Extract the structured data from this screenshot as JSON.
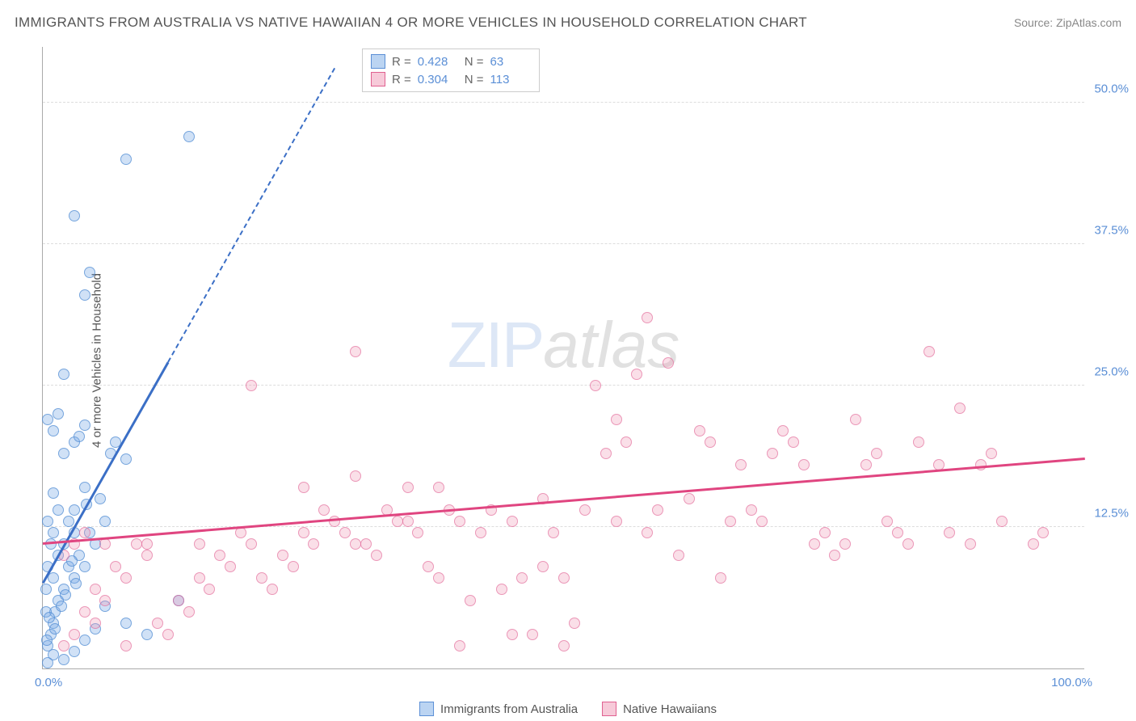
{
  "title": "IMMIGRANTS FROM AUSTRALIA VS NATIVE HAWAIIAN 4 OR MORE VEHICLES IN HOUSEHOLD CORRELATION CHART",
  "source": "Source: ZipAtlas.com",
  "y_axis_label": "4 or more Vehicles in Household",
  "watermark_a": "ZIP",
  "watermark_b": "atlas",
  "chart": {
    "type": "scatter",
    "xlim": [
      0,
      100
    ],
    "ylim": [
      0,
      55
    ],
    "background_color": "#ffffff",
    "grid_color": "#dddddd",
    "axis_color": "#aaaaaa",
    "y_ticks": [
      {
        "val": 12.5,
        "label": "12.5%"
      },
      {
        "val": 25.0,
        "label": "25.0%"
      },
      {
        "val": 37.5,
        "label": "37.5%"
      },
      {
        "val": 50.0,
        "label": "50.0%"
      }
    ],
    "x_ticks": [
      {
        "val": 0,
        "label": "0.0%",
        "align": "left"
      },
      {
        "val": 100,
        "label": "100.0%",
        "align": "right"
      }
    ],
    "series": [
      {
        "name": "Immigrants from Australia",
        "color_fill": "rgba(120,170,230,0.35)",
        "color_stroke": "#5b8fd6",
        "label_color": "#5b8fd6",
        "R": "0.428",
        "N": "63",
        "trend": {
          "x1": 0,
          "y1": 7.5,
          "x2": 12,
          "y2": 27,
          "extend_x2": 28,
          "extend_y2": 53,
          "color": "#3b6fc6"
        },
        "points": [
          [
            0.5,
            2
          ],
          [
            0.8,
            3
          ],
          [
            1,
            4
          ],
          [
            1.2,
            5
          ],
          [
            1.5,
            6
          ],
          [
            0.3,
            7
          ],
          [
            2,
            7
          ],
          [
            1,
            8
          ],
          [
            3,
            8
          ],
          [
            0.5,
            9
          ],
          [
            2.5,
            9
          ],
          [
            4,
            9
          ],
          [
            1.5,
            10
          ],
          [
            3.5,
            10
          ],
          [
            0.8,
            11
          ],
          [
            2,
            11
          ],
          [
            5,
            11
          ],
          [
            1,
            12
          ],
          [
            3,
            12
          ],
          [
            4.5,
            12
          ],
          [
            0.5,
            13
          ],
          [
            2.5,
            13
          ],
          [
            6,
            13
          ],
          [
            1.5,
            14
          ],
          [
            3,
            14
          ],
          [
            0.3,
            5
          ],
          [
            1.8,
            5.5
          ],
          [
            2.2,
            6.5
          ],
          [
            0.6,
            4.5
          ],
          [
            3.2,
            7.5
          ],
          [
            4.2,
            14.5
          ],
          [
            5.5,
            15
          ],
          [
            1,
            15.5
          ],
          [
            2.8,
            9.5
          ],
          [
            1.2,
            3.5
          ],
          [
            0.4,
            2.5
          ],
          [
            6.5,
            19
          ],
          [
            7,
            20
          ],
          [
            8,
            18.5
          ],
          [
            2,
            19
          ],
          [
            3,
            20
          ],
          [
            1,
            21
          ],
          [
            0.5,
            22
          ],
          [
            1.5,
            22.5
          ],
          [
            2,
            26
          ],
          [
            3.5,
            20.5
          ],
          [
            4,
            21.5
          ],
          [
            13,
            6
          ],
          [
            10,
            3
          ],
          [
            8,
            4
          ],
          [
            6,
            5.5
          ],
          [
            5,
            3.5
          ],
          [
            4,
            2.5
          ],
          [
            3,
            1.5
          ],
          [
            2,
            0.8
          ],
          [
            1,
            1.2
          ],
          [
            0.5,
            0.5
          ],
          [
            3,
            40
          ],
          [
            4,
            33
          ],
          [
            4.5,
            35
          ],
          [
            8,
            45
          ],
          [
            14,
            47
          ],
          [
            4,
            16
          ]
        ]
      },
      {
        "name": "Native Hawaiians",
        "color_fill": "rgba(240,150,180,0.3)",
        "color_stroke": "#e06090",
        "label_color": "#e06090",
        "R": "0.304",
        "N": "113",
        "trend": {
          "x1": 0,
          "y1": 11,
          "x2": 100,
          "y2": 18.5,
          "color": "#e04580"
        },
        "points": [
          [
            2,
            2
          ],
          [
            3,
            3
          ],
          [
            5,
            4
          ],
          [
            4,
            5
          ],
          [
            6,
            6
          ],
          [
            5,
            7
          ],
          [
            8,
            8
          ],
          [
            7,
            9
          ],
          [
            10,
            10
          ],
          [
            9,
            11
          ],
          [
            12,
            3
          ],
          [
            11,
            4
          ],
          [
            14,
            5
          ],
          [
            13,
            6
          ],
          [
            16,
            7
          ],
          [
            15,
            8
          ],
          [
            18,
            9
          ],
          [
            17,
            10
          ],
          [
            20,
            11
          ],
          [
            19,
            12
          ],
          [
            22,
            7
          ],
          [
            21,
            8
          ],
          [
            24,
            9
          ],
          [
            23,
            10
          ],
          [
            26,
            11
          ],
          [
            25,
            12
          ],
          [
            28,
            13
          ],
          [
            27,
            14
          ],
          [
            30,
            11
          ],
          [
            29,
            12
          ],
          [
            32,
            10
          ],
          [
            31,
            11
          ],
          [
            34,
            13
          ],
          [
            33,
            14
          ],
          [
            36,
            12
          ],
          [
            35,
            13
          ],
          [
            38,
            8
          ],
          [
            37,
            9
          ],
          [
            40,
            13
          ],
          [
            39,
            14
          ],
          [
            42,
            12
          ],
          [
            41,
            6
          ],
          [
            44,
            7
          ],
          [
            43,
            14
          ],
          [
            46,
            8
          ],
          [
            45,
            13
          ],
          [
            48,
            9
          ],
          [
            47,
            3
          ],
          [
            50,
            8
          ],
          [
            49,
            12
          ],
          [
            52,
            14
          ],
          [
            51,
            4
          ],
          [
            54,
            19
          ],
          [
            53,
            25
          ],
          [
            56,
            20
          ],
          [
            55,
            13
          ],
          [
            58,
            12
          ],
          [
            57,
            26
          ],
          [
            60,
            27
          ],
          [
            59,
            14
          ],
          [
            62,
            15
          ],
          [
            61,
            10
          ],
          [
            64,
            20
          ],
          [
            63,
            21
          ],
          [
            66,
            13
          ],
          [
            65,
            8
          ],
          [
            68,
            14
          ],
          [
            67,
            18
          ],
          [
            70,
            19
          ],
          [
            69,
            13
          ],
          [
            72,
            20
          ],
          [
            71,
            21
          ],
          [
            74,
            11
          ],
          [
            73,
            18
          ],
          [
            76,
            10
          ],
          [
            75,
            12
          ],
          [
            78,
            22
          ],
          [
            77,
            11
          ],
          [
            80,
            19
          ],
          [
            79,
            18
          ],
          [
            82,
            12
          ],
          [
            81,
            13
          ],
          [
            84,
            20
          ],
          [
            83,
            11
          ],
          [
            86,
            18
          ],
          [
            85,
            28
          ],
          [
            88,
            23
          ],
          [
            87,
            12
          ],
          [
            90,
            18
          ],
          [
            89,
            11
          ],
          [
            92,
            13
          ],
          [
            91,
            19
          ],
          [
            96,
            12
          ],
          [
            95,
            11
          ],
          [
            45,
            3
          ],
          [
            40,
            2
          ],
          [
            35,
            16
          ],
          [
            30,
            17
          ],
          [
            25,
            16
          ],
          [
            20,
            25
          ],
          [
            15,
            11
          ],
          [
            10,
            11
          ],
          [
            8,
            2
          ],
          [
            6,
            11
          ],
          [
            4,
            12
          ],
          [
            2,
            10
          ],
          [
            3,
            11
          ],
          [
            38,
            16
          ],
          [
            30,
            28
          ],
          [
            58,
            31
          ],
          [
            50,
            2
          ],
          [
            55,
            22
          ],
          [
            48,
            15
          ]
        ]
      }
    ],
    "bottom_legend": [
      {
        "swatch": "blue",
        "label": "Immigrants from Australia"
      },
      {
        "swatch": "pink",
        "label": "Native Hawaiians"
      }
    ]
  }
}
